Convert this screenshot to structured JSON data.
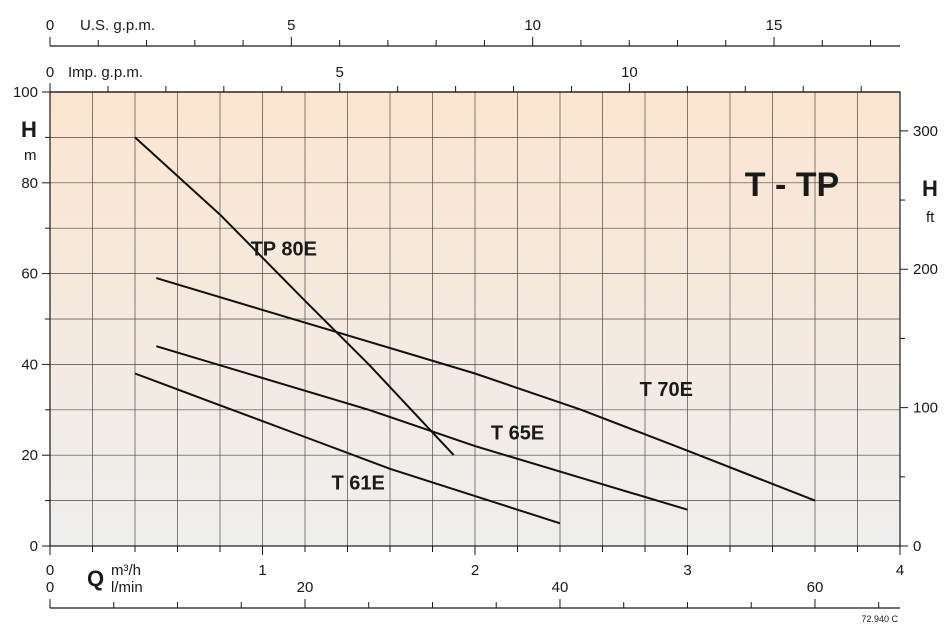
{
  "chart_data": {
    "type": "line",
    "title": "T - TP",
    "reference": "72.940 C",
    "x": {
      "axis_label": "Q",
      "unit_top": "m³/h",
      "unit_bottom": "l/min",
      "range": [
        0,
        4
      ],
      "ticks": [
        "0",
        "1",
        "2",
        "3",
        "4"
      ]
    },
    "x_lpm": {
      "range": [
        0,
        66.67
      ],
      "ticks": [
        "0",
        "20",
        "40",
        "60"
      ]
    },
    "x_usgpm": {
      "label": "U.S. g.p.m.",
      "range": [
        0,
        17.61
      ],
      "ticks": [
        "0",
        "5",
        "10",
        "15"
      ]
    },
    "x_impgpm": {
      "label": "Imp. g.p.m.",
      "range": [
        0,
        14.67
      ],
      "ticks": [
        "0",
        "5",
        "10"
      ]
    },
    "y": {
      "axis_label": "H",
      "unit": "m",
      "range": [
        0,
        100
      ],
      "ticks": [
        "0",
        "20",
        "40",
        "60",
        "80",
        "100"
      ]
    },
    "y_ft": {
      "axis_label": "H",
      "unit": "ft",
      "range": [
        0,
        328.08
      ],
      "ticks": [
        "0",
        "100",
        "200",
        "300"
      ]
    },
    "grid": true,
    "background": {
      "top": "#fbe5cf",
      "bottom": "#eeeeee"
    },
    "series": [
      {
        "name": "TP 80E",
        "x": [
          0.4,
          0.8,
          1.2,
          1.5,
          1.7,
          1.9
        ],
        "y": [
          90,
          73,
          54,
          40,
          30,
          20
        ]
      },
      {
        "name": "T 70E",
        "x": [
          0.5,
          1.0,
          1.5,
          2.0,
          2.5,
          3.0,
          3.6
        ],
        "y": [
          59,
          52,
          45,
          38,
          30,
          21,
          10
        ]
      },
      {
        "name": "T 65E",
        "x": [
          0.5,
          1.0,
          1.5,
          2.0,
          2.5,
          3.0
        ],
        "y": [
          44,
          37,
          30,
          22,
          15,
          8
        ]
      },
      {
        "name": "T 61E",
        "x": [
          0.4,
          0.8,
          1.2,
          1.6,
          2.0,
          2.4
        ],
        "y": [
          38,
          31,
          24,
          17,
          11,
          5
        ]
      }
    ]
  }
}
